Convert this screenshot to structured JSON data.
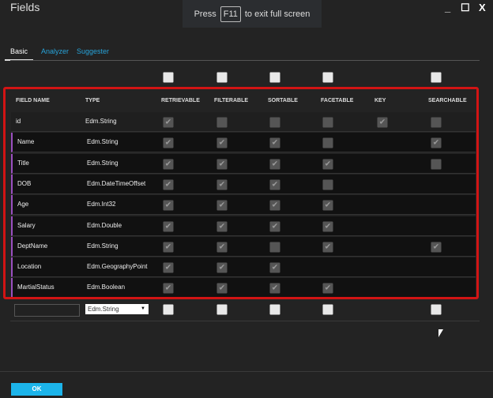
{
  "window": {
    "title": "Fields",
    "minimize": "_",
    "maximize": "☐",
    "close": "X"
  },
  "fullscreen_notice": {
    "pre": "Press",
    "key": "F11",
    "post": "to exit full screen"
  },
  "tabs": [
    {
      "label": "Basic",
      "active": true
    },
    {
      "label": "Analyzer"
    },
    {
      "label": "Suggester"
    }
  ],
  "columns": [
    "FIELD NAME",
    "TYPE",
    "RETRIEVABLE",
    "FILTERABLE",
    "SORTABLE",
    "FACETABLE",
    "KEY",
    "SEARCHABLE"
  ],
  "header_select_all": [
    "unchecked",
    "unchecked",
    "unchecked",
    "unchecked",
    null,
    "unchecked"
  ],
  "rows": [
    {
      "name": "id",
      "type": "Edm.String",
      "flags": [
        "checked",
        "unchecked",
        "unchecked",
        "unchecked",
        "checked",
        "unchecked"
      ]
    },
    {
      "name": "Name",
      "type": "Edm.String",
      "flags": [
        "checked",
        "checked",
        "checked",
        "unchecked",
        null,
        "checked"
      ]
    },
    {
      "name": "Title",
      "type": "Edm.String",
      "flags": [
        "checked",
        "checked",
        "checked",
        "checked",
        null,
        "unchecked"
      ]
    },
    {
      "name": "DOB",
      "type": "Edm.DateTimeOffset",
      "flags": [
        "checked",
        "checked",
        "checked",
        "unchecked",
        null,
        null
      ]
    },
    {
      "name": "Age",
      "type": "Edm.Int32",
      "flags": [
        "checked",
        "checked",
        "checked",
        "checked",
        null,
        null
      ]
    },
    {
      "name": "Salary",
      "type": "Edm.Double",
      "flags": [
        "checked",
        "checked",
        "checked",
        "checked",
        null,
        null
      ]
    },
    {
      "name": "DeptName",
      "type": "Edm.String",
      "flags": [
        "checked",
        "checked",
        "unchecked",
        "checked",
        null,
        "checked"
      ]
    },
    {
      "name": "Location",
      "type": "Edm.GeographyPoint",
      "flags": [
        "checked",
        "checked",
        "checked",
        null,
        null,
        null
      ]
    },
    {
      "name": "MartialStatus",
      "type": "Edm.Boolean",
      "flags": [
        "checked",
        "checked",
        "checked",
        "checked",
        null,
        null
      ]
    }
  ],
  "new_field": {
    "name": "",
    "type": "Edm.String",
    "flags": [
      "unchecked",
      "unchecked",
      "unchecked",
      "unchecked",
      null,
      "unchecked"
    ]
  },
  "ok_label": "OK",
  "colors": {
    "accent": "#1cb4ea",
    "highlight_border": "#d21414",
    "tab_link": "#27a3d9"
  }
}
